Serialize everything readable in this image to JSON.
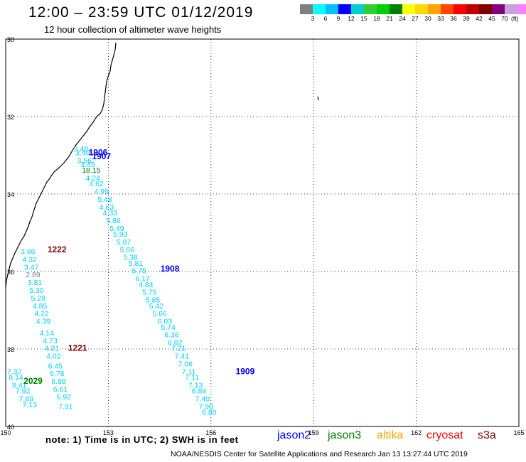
{
  "header": {
    "title": "12:00 – 23:59 UTC 01/12/2019",
    "subtitle": "12 hour collection of altimeter wave heights"
  },
  "legend": {
    "colors": [
      "#808080",
      "#00ffff",
      "#00bfff",
      "#0000ff",
      "#00ced1",
      "#32cd32",
      "#00d000",
      "#008000",
      "#ffff00",
      "#ffd700",
      "#ffa500",
      "#ff4500",
      "#ff0000",
      "#c00000",
      "#800000",
      "#800080",
      "#c8a0e0",
      "#ff80ff",
      "#000000"
    ],
    "labels": [
      "3",
      "6",
      "9",
      "12",
      "15",
      "18",
      "21",
      "24",
      "27",
      "30",
      "33",
      "36",
      "39",
      "42",
      "45",
      "70"
    ],
    "units": "(ft)"
  },
  "axes": {
    "lat_labels": [
      "30",
      "32",
      "34",
      "36",
      "38",
      "40"
    ],
    "lon_labels": [
      "150",
      "153",
      "156",
      "159",
      "162",
      "165"
    ]
  },
  "chart_data": {
    "type": "scatter",
    "title": "12:00 – 23:59 UTC 01/12/2019",
    "subtitle": "12 hour collection of altimeter wave heights",
    "xlim": [
      150,
      165
    ],
    "ylim_deg_south": [
      30,
      40
    ],
    "unit": "ft",
    "series": [
      {
        "name": "jason2",
        "color": "#0000ff",
        "track_labels": [
          {
            "label": "1906",
            "lon": 152.7,
            "lat": 33.0
          },
          {
            "label": "1907",
            "lon": 152.8,
            "lat": 33.1
          },
          {
            "label": "1908",
            "lon": 154.8,
            "lat": 36.0
          },
          {
            "label": "1909",
            "lon": 157.0,
            "lat": 38.65
          }
        ]
      },
      {
        "name": "jason3",
        "color": "#008000",
        "track_labels": [
          {
            "label": "2029",
            "lon": 150.8,
            "lat": 38.9
          }
        ]
      },
      {
        "name": "altika",
        "color": "#ffa500",
        "track_labels": []
      },
      {
        "name": "cryosat",
        "color": "#ff0000",
        "track_labels": [
          {
            "label": "1222",
            "lon": 151.5,
            "lat": 35.5
          },
          {
            "label": "1221",
            "lon": 152.1,
            "lat": 38.05
          }
        ]
      },
      {
        "name": "s3a",
        "color": "#800000",
        "track_labels": []
      }
    ],
    "points": [
      {
        "v": "3.48",
        "lon": 152.2,
        "lat": 32.9,
        "c": "#00ccff"
      },
      {
        "v": "3.49",
        "lon": 152.25,
        "lat": 33.0,
        "c": "#00ccff"
      },
      {
        "v": "3.56",
        "lon": 152.3,
        "lat": 33.2,
        "c": "#00ccff"
      },
      {
        "v": "3.45",
        "lon": 152.4,
        "lat": 33.3,
        "c": "#00ccff"
      },
      {
        "v": "18.15",
        "lon": 152.5,
        "lat": 33.45,
        "c": "#008000"
      },
      {
        "v": "4.24",
        "lon": 152.55,
        "lat": 33.65,
        "c": "#00ccff"
      },
      {
        "v": "4.62",
        "lon": 152.65,
        "lat": 33.8,
        "c": "#00ccff"
      },
      {
        "v": "4.99",
        "lon": 152.8,
        "lat": 34.0,
        "c": "#00ccff"
      },
      {
        "v": "5.48",
        "lon": 152.9,
        "lat": 34.2,
        "c": "#00ccff"
      },
      {
        "v": "4.63",
        "lon": 152.95,
        "lat": 34.4,
        "c": "#00ccff"
      },
      {
        "v": "4.33",
        "lon": 153.05,
        "lat": 34.55,
        "c": "#00ccff"
      },
      {
        "v": "5.86",
        "lon": 153.15,
        "lat": 34.75,
        "c": "#00ccff"
      },
      {
        "v": "5.49",
        "lon": 153.25,
        "lat": 34.95,
        "c": "#00ccff"
      },
      {
        "v": "5.93",
        "lon": 153.35,
        "lat": 35.1,
        "c": "#00ccff"
      },
      {
        "v": "5.87",
        "lon": 153.45,
        "lat": 35.3,
        "c": "#00ccff"
      },
      {
        "v": "5.66",
        "lon": 153.55,
        "lat": 35.5,
        "c": "#00ccff"
      },
      {
        "v": "5.38",
        "lon": 153.65,
        "lat": 35.7,
        "c": "#00ccff"
      },
      {
        "v": "5.81",
        "lon": 153.8,
        "lat": 35.85,
        "c": "#00ccff"
      },
      {
        "v": "5.75",
        "lon": 153.9,
        "lat": 36.05,
        "c": "#00ccff"
      },
      {
        "v": "6.17",
        "lon": 154.0,
        "lat": 36.25,
        "c": "#00ccff"
      },
      {
        "v": "4.84",
        "lon": 154.1,
        "lat": 36.4,
        "c": "#00ccff"
      },
      {
        "v": "5.75",
        "lon": 154.2,
        "lat": 36.6,
        "c": "#00ccff"
      },
      {
        "v": "5.85",
        "lon": 154.3,
        "lat": 36.8,
        "c": "#00ccff"
      },
      {
        "v": "5.42",
        "lon": 154.4,
        "lat": 36.95,
        "c": "#00ccff"
      },
      {
        "v": "5.66",
        "lon": 154.5,
        "lat": 37.15,
        "c": "#00ccff"
      },
      {
        "v": "6.03",
        "lon": 154.65,
        "lat": 37.35,
        "c": "#00ccff"
      },
      {
        "v": "5.74",
        "lon": 154.75,
        "lat": 37.5,
        "c": "#00ccff"
      },
      {
        "v": "6.36",
        "lon": 154.85,
        "lat": 37.7,
        "c": "#00ccff"
      },
      {
        "v": "6.82",
        "lon": 154.95,
        "lat": 37.9,
        "c": "#00ccff"
      },
      {
        "v": "7.21",
        "lon": 155.05,
        "lat": 38.05,
        "c": "#00ccff"
      },
      {
        "v": "7.41",
        "lon": 155.15,
        "lat": 38.25,
        "c": "#00ccff"
      },
      {
        "v": "7.06",
        "lon": 155.25,
        "lat": 38.45,
        "c": "#00ccff"
      },
      {
        "v": "7.11",
        "lon": 155.35,
        "lat": 38.65,
        "c": "#00ccff"
      },
      {
        "v": "7.11",
        "lon": 155.45,
        "lat": 38.8,
        "c": "#00ccff"
      },
      {
        "v": "7.13",
        "lon": 155.55,
        "lat": 39.0,
        "c": "#00ccff"
      },
      {
        "v": "6.89",
        "lon": 155.65,
        "lat": 39.15,
        "c": "#00ccff"
      },
      {
        "v": "7.40",
        "lon": 155.75,
        "lat": 39.35,
        "c": "#00ccff"
      },
      {
        "v": "7.90",
        "lon": 155.85,
        "lat": 39.55,
        "c": "#00ccff"
      },
      {
        "v": "6.80",
        "lon": 155.95,
        "lat": 39.7,
        "c": "#00ccff"
      },
      {
        "v": "3.86",
        "lon": 150.65,
        "lat": 35.55,
        "c": "#00ccff"
      },
      {
        "v": "4.32",
        "lon": 150.7,
        "lat": 35.75,
        "c": "#00ccff"
      },
      {
        "v": "3.47",
        "lon": 150.75,
        "lat": 35.95,
        "c": "#00ccff"
      },
      {
        "v": "2.89",
        "lon": 150.8,
        "lat": 36.15,
        "c": "#808080"
      },
      {
        "v": "3.81",
        "lon": 150.85,
        "lat": 36.35,
        "c": "#00ccff"
      },
      {
        "v": "5.30",
        "lon": 150.9,
        "lat": 36.55,
        "c": "#00ccff"
      },
      {
        "v": "5.28",
        "lon": 150.95,
        "lat": 36.75,
        "c": "#00ccff"
      },
      {
        "v": "4.85",
        "lon": 151.0,
        "lat": 36.95,
        "c": "#00ccff"
      },
      {
        "v": "4.22",
        "lon": 151.05,
        "lat": 37.15,
        "c": "#00ccff"
      },
      {
        "v": "4.39",
        "lon": 151.1,
        "lat": 37.35,
        "c": "#00ccff"
      },
      {
        "v": "4.14",
        "lon": 151.2,
        "lat": 37.65,
        "c": "#00ccff"
      },
      {
        "v": "4.73",
        "lon": 151.3,
        "lat": 37.85,
        "c": "#00ccff"
      },
      {
        "v": "4.21",
        "lon": 151.35,
        "lat": 38.05,
        "c": "#00ccff"
      },
      {
        "v": "4.02",
        "lon": 151.4,
        "lat": 38.25,
        "c": "#00ccff"
      },
      {
        "v": "6.45",
        "lon": 151.45,
        "lat": 38.5,
        "c": "#00ccff"
      },
      {
        "v": "6.78",
        "lon": 151.5,
        "lat": 38.7,
        "c": "#00ccff"
      },
      {
        "v": "6.88",
        "lon": 151.55,
        "lat": 38.9,
        "c": "#00ccff"
      },
      {
        "v": "6.61",
        "lon": 151.6,
        "lat": 39.1,
        "c": "#00ccff"
      },
      {
        "v": "6.92",
        "lon": 151.7,
        "lat": 39.3,
        "c": "#00ccff"
      },
      {
        "v": "7.91",
        "lon": 151.75,
        "lat": 39.55,
        "c": "#00ccff"
      },
      {
        "v": "7.32",
        "lon": 150.25,
        "lat": 38.65,
        "c": "#00ccff"
      },
      {
        "v": "8.14",
        "lon": 150.3,
        "lat": 38.8,
        "c": "#00ccff"
      },
      {
        "v": "8.41",
        "lon": 150.4,
        "lat": 39.0,
        "c": "#00ccff"
      },
      {
        "v": "7.92",
        "lon": 150.5,
        "lat": 39.15,
        "c": "#00ccff"
      },
      {
        "v": "7.89",
        "lon": 150.6,
        "lat": 39.35,
        "c": "#00ccff"
      },
      {
        "v": "7.13",
        "lon": 150.7,
        "lat": 39.5,
        "c": "#00ccff"
      }
    ]
  },
  "footer": {
    "note": "note:  1) Time is in UTC;  2) SWH is in feet",
    "satellites": [
      {
        "name": "jason2",
        "color": "#0000ff"
      },
      {
        "name": "jason3",
        "color": "#008000"
      },
      {
        "name": "altika",
        "color": "#ffa500"
      },
      {
        "name": "cryosat",
        "color": "#ff0000"
      },
      {
        "name": "s3a",
        "color": "#800000"
      }
    ],
    "credit": "NOAA/NESDIS Center for Satellite Applications and Research    Jan 13 13:27:44 UTC 2019"
  }
}
